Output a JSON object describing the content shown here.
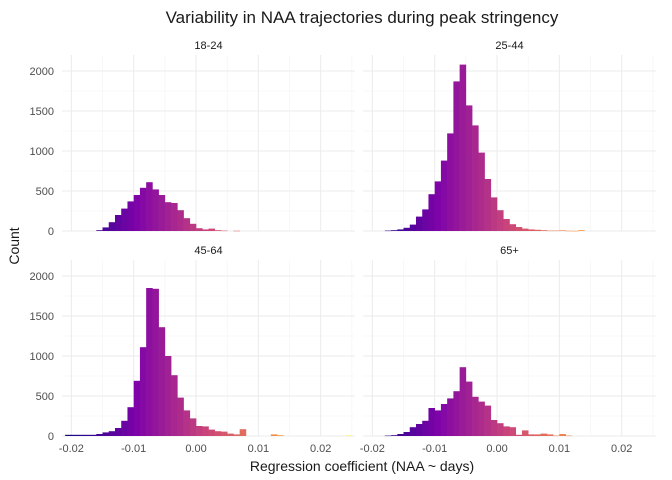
{
  "chart_data": {
    "type": "histogram",
    "title": "Variability in NAA trajectories during peak stringency",
    "xlabel": "Regression coefficient (NAA ~ days)",
    "ylabel": "Count",
    "xlim": [
      -0.0215,
      0.0255
    ],
    "ylim": [
      0,
      2200
    ],
    "x_ticks": [
      -0.02,
      -0.01,
      0.0,
      0.01,
      0.02
    ],
    "x_tick_labels": [
      "-0.02",
      "-0.01",
      "0.00",
      "0.01",
      "0.02"
    ],
    "y_ticks": [
      0,
      500,
      1000,
      1500,
      2000
    ],
    "y_tick_labels": [
      "0",
      "500",
      "1000",
      "1500",
      "2000"
    ],
    "bin_width": 0.001,
    "color_scale": "plasma",
    "color_stops": [
      "#0d0887",
      "#7e03a8",
      "#cc4778",
      "#f89540",
      "#f0f921"
    ],
    "grid": true,
    "facets": [
      {
        "label": "18-24",
        "bins_start": [
          -0.016,
          -0.015,
          -0.014,
          -0.013,
          -0.012,
          -0.011,
          -0.01,
          -0.009,
          -0.008,
          -0.007,
          -0.006,
          -0.005,
          -0.004,
          -0.003,
          -0.002,
          -0.001,
          0.0,
          0.001,
          0.002,
          0.003,
          0.004,
          0.005,
          0.006,
          0.007
        ],
        "counts": [
          10,
          45,
          110,
          200,
          280,
          370,
          450,
          540,
          610,
          520,
          450,
          360,
          350,
          260,
          160,
          90,
          35,
          20,
          30,
          10,
          5,
          0,
          3,
          0
        ]
      },
      {
        "label": "25-44",
        "bins_start": [
          -0.018,
          -0.017,
          -0.016,
          -0.015,
          -0.014,
          -0.013,
          -0.012,
          -0.011,
          -0.01,
          -0.009,
          -0.008,
          -0.007,
          -0.006,
          -0.005,
          -0.004,
          -0.003,
          -0.002,
          -0.001,
          0.0,
          0.001,
          0.002,
          0.003,
          0.004,
          0.005,
          0.006,
          0.007,
          0.008,
          0.009,
          0.01,
          0.011,
          0.012,
          0.013
        ],
        "counts": [
          5,
          10,
          20,
          40,
          80,
          180,
          270,
          460,
          620,
          880,
          1220,
          1870,
          2080,
          1570,
          1320,
          980,
          650,
          420,
          260,
          150,
          85,
          50,
          30,
          20,
          15,
          10,
          5,
          5,
          8,
          3,
          2,
          10
        ]
      },
      {
        "label": "45-64",
        "bins_start": [
          -0.021,
          -0.02,
          -0.019,
          -0.018,
          -0.017,
          -0.016,
          -0.015,
          -0.014,
          -0.013,
          -0.012,
          -0.011,
          -0.01,
          -0.009,
          -0.008,
          -0.007,
          -0.006,
          -0.005,
          -0.004,
          -0.003,
          -0.002,
          -0.001,
          0.0,
          0.001,
          0.002,
          0.003,
          0.004,
          0.005,
          0.006,
          0.007,
          0.012,
          0.013,
          0.024
        ],
        "counts": [
          15,
          15,
          15,
          15,
          15,
          25,
          45,
          60,
          100,
          190,
          360,
          690,
          1110,
          1850,
          1840,
          1360,
          1000,
          760,
          480,
          320,
          220,
          125,
          120,
          80,
          60,
          55,
          30,
          20,
          85,
          20,
          10,
          5
        ]
      },
      {
        "label": "65+",
        "bins_start": [
          -0.018,
          -0.017,
          -0.016,
          -0.015,
          -0.014,
          -0.013,
          -0.012,
          -0.011,
          -0.01,
          -0.009,
          -0.008,
          -0.007,
          -0.006,
          -0.005,
          -0.004,
          -0.003,
          -0.002,
          -0.001,
          0.0,
          0.001,
          0.002,
          0.003,
          0.004,
          0.005,
          0.006,
          0.007,
          0.008,
          0.009,
          0.01,
          0.011,
          0.012
        ],
        "counts": [
          5,
          10,
          25,
          50,
          110,
          150,
          190,
          350,
          320,
          400,
          470,
          560,
          860,
          680,
          490,
          430,
          380,
          200,
          160,
          120,
          110,
          15,
          70,
          20,
          20,
          30,
          20,
          5,
          25,
          5,
          0
        ]
      }
    ]
  }
}
